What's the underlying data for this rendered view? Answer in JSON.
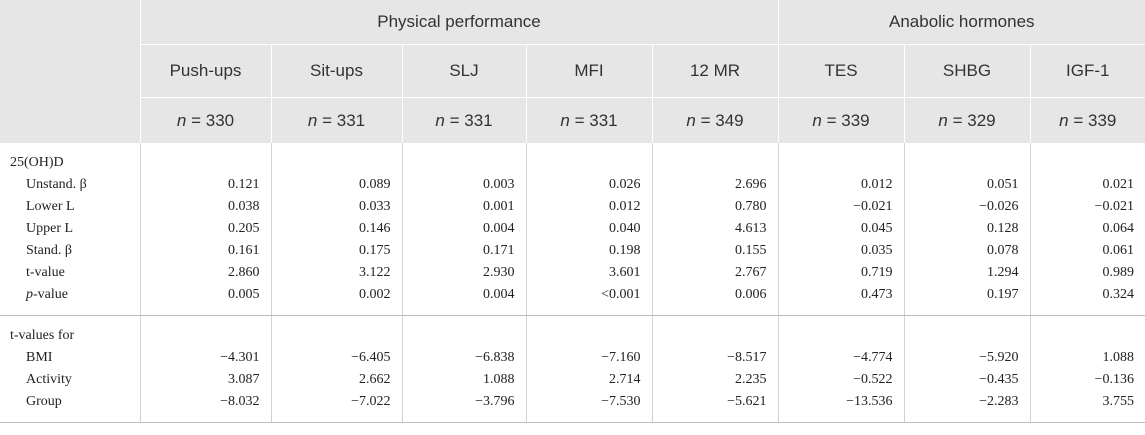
{
  "header": {
    "groups": [
      "Physical performance",
      "Anabolic hormones"
    ],
    "columns": [
      "Push-ups",
      "Sit-ups",
      "SLJ",
      "MFI",
      "12 MR",
      "TES",
      "SHBG",
      "IGF-1"
    ],
    "n_values": [
      "n = 330",
      "n = 331",
      "n = 331",
      "n = 331",
      "n = 349",
      "n = 339",
      "n = 329",
      "n = 339"
    ]
  },
  "section1": {
    "title": "25(OH)D",
    "rows": [
      {
        "label": "Unstand. β",
        "values": [
          "0.121",
          "0.089",
          "0.003",
          "0.026",
          "2.696",
          "0.012",
          "0.051",
          "0.021"
        ]
      },
      {
        "label": "Lower L",
        "values": [
          "0.038",
          "0.033",
          "0.001",
          "0.012",
          "0.780",
          "−0.021",
          "−0.026",
          "−0.021"
        ]
      },
      {
        "label": "Upper L",
        "values": [
          "0.205",
          "0.146",
          "0.004",
          "0.040",
          "4.613",
          "0.045",
          "0.128",
          "0.064"
        ]
      },
      {
        "label": "Stand. β",
        "values": [
          "0.161",
          "0.175",
          "0.171",
          "0.198",
          "0.155",
          "0.035",
          "0.078",
          "0.061"
        ]
      },
      {
        "label": "t-value",
        "values": [
          "2.860",
          "3.122",
          "2.930",
          "3.601",
          "2.767",
          "0.719",
          "1.294",
          "0.989"
        ]
      },
      {
        "label": "p-value",
        "values": [
          "0.005",
          "0.002",
          "0.004",
          "<0.001",
          "0.006",
          "0.473",
          "0.197",
          "0.324"
        ]
      }
    ]
  },
  "section2": {
    "title": "t-values for",
    "rows": [
      {
        "label": "BMI",
        "values": [
          "−4.301",
          "−6.405",
          "−6.838",
          "−7.160",
          "−8.517",
          "−4.774",
          "−5.920",
          "1.088"
        ]
      },
      {
        "label": "Activity",
        "values": [
          "3.087",
          "2.662",
          "1.088",
          "2.714",
          "2.235",
          "−0.522",
          "−0.435",
          "−0.136"
        ]
      },
      {
        "label": "Group",
        "values": [
          "−8.032",
          "−7.022",
          "−3.796",
          "−7.530",
          "−5.621",
          "−13.536",
          "−2.283",
          "3.755"
        ]
      }
    ]
  }
}
